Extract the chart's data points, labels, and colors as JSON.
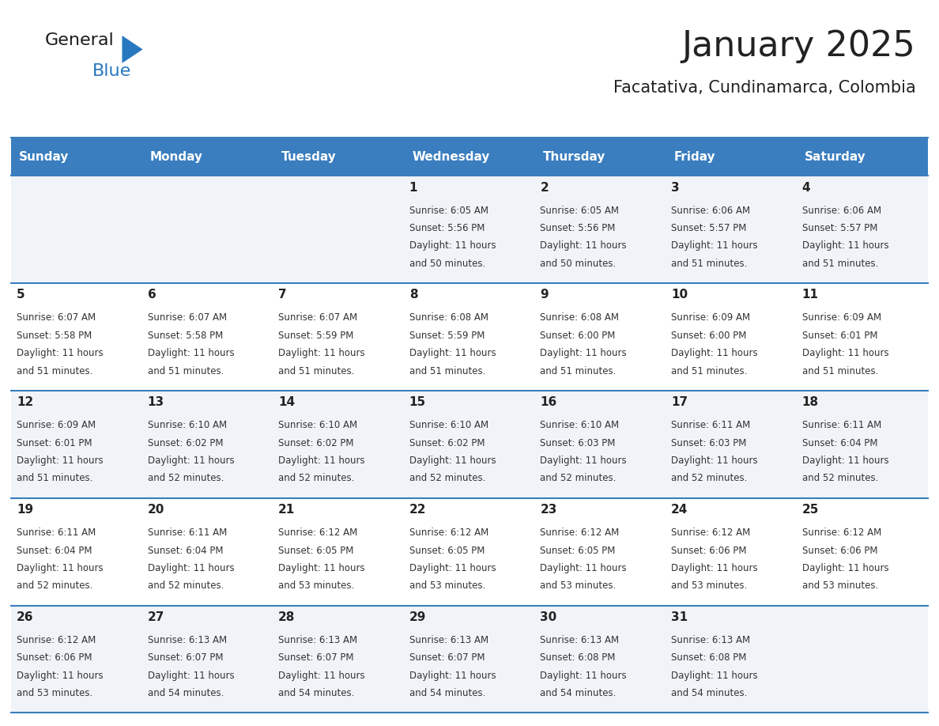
{
  "title": "January 2025",
  "subtitle": "Facatativa, Cundinamarca, Colombia",
  "days_of_week": [
    "Sunday",
    "Monday",
    "Tuesday",
    "Wednesday",
    "Thursday",
    "Friday",
    "Saturday"
  ],
  "header_bg": "#3a7ebf",
  "header_text": "#ffffff",
  "cell_bg_light": "#f0f4f8",
  "cell_bg_white": "#ffffff",
  "day_num_color": "#222222",
  "text_color": "#333333",
  "divider_color": "#3a7ebf",
  "logo_general_color": "#1a1a1a",
  "logo_blue_color": "#2878c0",
  "calendar": [
    [
      {
        "day": 0
      },
      {
        "day": 0
      },
      {
        "day": 0
      },
      {
        "day": 1,
        "sunrise": "6:05 AM",
        "sunset": "5:56 PM",
        "daylight": "11 hours and 50 minutes."
      },
      {
        "day": 2,
        "sunrise": "6:05 AM",
        "sunset": "5:56 PM",
        "daylight": "11 hours and 50 minutes."
      },
      {
        "day": 3,
        "sunrise": "6:06 AM",
        "sunset": "5:57 PM",
        "daylight": "11 hours and 51 minutes."
      },
      {
        "day": 4,
        "sunrise": "6:06 AM",
        "sunset": "5:57 PM",
        "daylight": "11 hours and 51 minutes."
      }
    ],
    [
      {
        "day": 5,
        "sunrise": "6:07 AM",
        "sunset": "5:58 PM",
        "daylight": "11 hours and 51 minutes."
      },
      {
        "day": 6,
        "sunrise": "6:07 AM",
        "sunset": "5:58 PM",
        "daylight": "11 hours and 51 minutes."
      },
      {
        "day": 7,
        "sunrise": "6:07 AM",
        "sunset": "5:59 PM",
        "daylight": "11 hours and 51 minutes."
      },
      {
        "day": 8,
        "sunrise": "6:08 AM",
        "sunset": "5:59 PM",
        "daylight": "11 hours and 51 minutes."
      },
      {
        "day": 9,
        "sunrise": "6:08 AM",
        "sunset": "6:00 PM",
        "daylight": "11 hours and 51 minutes."
      },
      {
        "day": 10,
        "sunrise": "6:09 AM",
        "sunset": "6:00 PM",
        "daylight": "11 hours and 51 minutes."
      },
      {
        "day": 11,
        "sunrise": "6:09 AM",
        "sunset": "6:01 PM",
        "daylight": "11 hours and 51 minutes."
      }
    ],
    [
      {
        "day": 12,
        "sunrise": "6:09 AM",
        "sunset": "6:01 PM",
        "daylight": "11 hours and 51 minutes."
      },
      {
        "day": 13,
        "sunrise": "6:10 AM",
        "sunset": "6:02 PM",
        "daylight": "11 hours and 52 minutes."
      },
      {
        "day": 14,
        "sunrise": "6:10 AM",
        "sunset": "6:02 PM",
        "daylight": "11 hours and 52 minutes."
      },
      {
        "day": 15,
        "sunrise": "6:10 AM",
        "sunset": "6:02 PM",
        "daylight": "11 hours and 52 minutes."
      },
      {
        "day": 16,
        "sunrise": "6:10 AM",
        "sunset": "6:03 PM",
        "daylight": "11 hours and 52 minutes."
      },
      {
        "day": 17,
        "sunrise": "6:11 AM",
        "sunset": "6:03 PM",
        "daylight": "11 hours and 52 minutes."
      },
      {
        "day": 18,
        "sunrise": "6:11 AM",
        "sunset": "6:04 PM",
        "daylight": "11 hours and 52 minutes."
      }
    ],
    [
      {
        "day": 19,
        "sunrise": "6:11 AM",
        "sunset": "6:04 PM",
        "daylight": "11 hours and 52 minutes."
      },
      {
        "day": 20,
        "sunrise": "6:11 AM",
        "sunset": "6:04 PM",
        "daylight": "11 hours and 52 minutes."
      },
      {
        "day": 21,
        "sunrise": "6:12 AM",
        "sunset": "6:05 PM",
        "daylight": "11 hours and 53 minutes."
      },
      {
        "day": 22,
        "sunrise": "6:12 AM",
        "sunset": "6:05 PM",
        "daylight": "11 hours and 53 minutes."
      },
      {
        "day": 23,
        "sunrise": "6:12 AM",
        "sunset": "6:05 PM",
        "daylight": "11 hours and 53 minutes."
      },
      {
        "day": 24,
        "sunrise": "6:12 AM",
        "sunset": "6:06 PM",
        "daylight": "11 hours and 53 minutes."
      },
      {
        "day": 25,
        "sunrise": "6:12 AM",
        "sunset": "6:06 PM",
        "daylight": "11 hours and 53 minutes."
      }
    ],
    [
      {
        "day": 26,
        "sunrise": "6:12 AM",
        "sunset": "6:06 PM",
        "daylight": "11 hours and 53 minutes."
      },
      {
        "day": 27,
        "sunrise": "6:13 AM",
        "sunset": "6:07 PM",
        "daylight": "11 hours and 54 minutes."
      },
      {
        "day": 28,
        "sunrise": "6:13 AM",
        "sunset": "6:07 PM",
        "daylight": "11 hours and 54 minutes."
      },
      {
        "day": 29,
        "sunrise": "6:13 AM",
        "sunset": "6:07 PM",
        "daylight": "11 hours and 54 minutes."
      },
      {
        "day": 30,
        "sunrise": "6:13 AM",
        "sunset": "6:08 PM",
        "daylight": "11 hours and 54 minutes."
      },
      {
        "day": 31,
        "sunrise": "6:13 AM",
        "sunset": "6:08 PM",
        "daylight": "11 hours and 54 minutes."
      },
      {
        "day": 0
      }
    ]
  ],
  "figsize": [
    11.88,
    9.18
  ],
  "dpi": 100,
  "title_fontsize": 32,
  "subtitle_fontsize": 15,
  "header_fontsize": 11,
  "day_num_fontsize": 11,
  "cell_fontsize": 8.5,
  "logo_general_fontsize": 16,
  "logo_blue_fontsize": 16
}
